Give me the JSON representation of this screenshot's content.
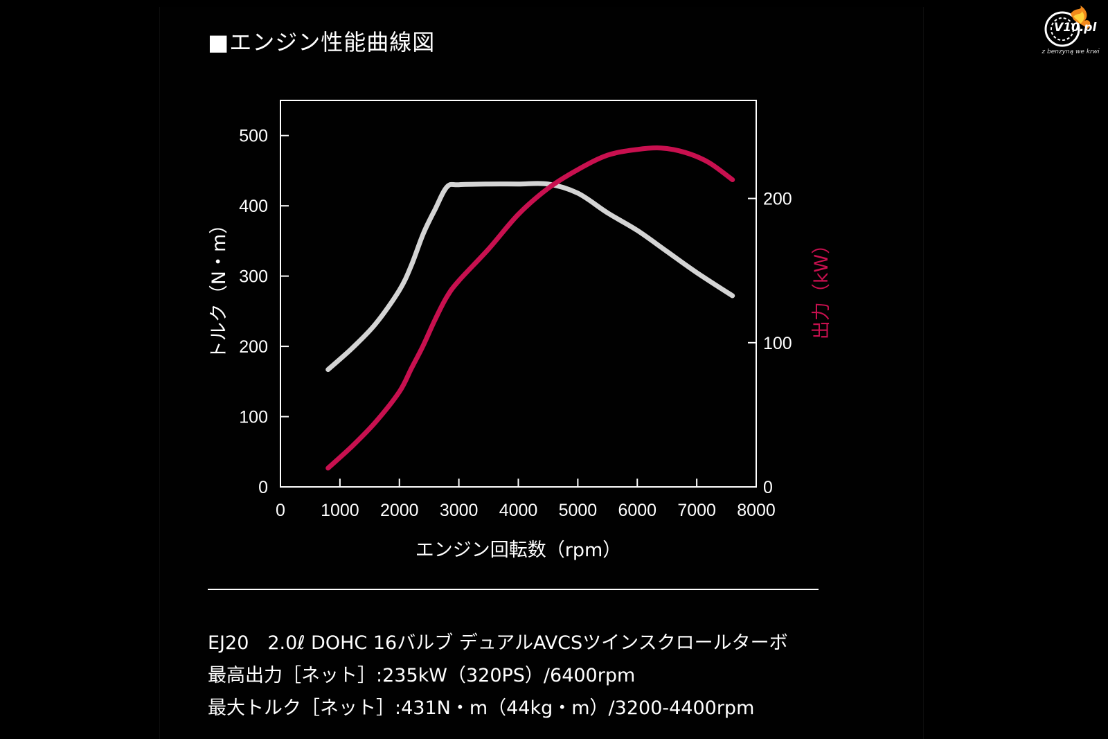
{
  "title": "■エンジン性能曲線図",
  "watermark": {
    "name": "V10.pl",
    "slogan": "z benzyną we krwi"
  },
  "chart_data": {
    "type": "line",
    "xlabel": "エンジン回転数（rpm）",
    "ylabel_left": "トルク（N・m）",
    "ylabel_right": "出力（kW）",
    "xlim": [
      0,
      8000
    ],
    "ylim_left": [
      0,
      550
    ],
    "ylim_right": [
      0,
      268
    ],
    "x_ticks": [
      0,
      1000,
      2000,
      3000,
      4000,
      5000,
      6000,
      7000,
      8000
    ],
    "y_ticks_left": [
      0,
      100,
      200,
      300,
      400,
      500
    ],
    "y_ticks_right": [
      0,
      100,
      200
    ],
    "grid": false,
    "series": [
      {
        "axis": "left",
        "color": "#d4d4d4",
        "x": [
          800,
          1200,
          1600,
          2000,
          2200,
          2400,
          2600,
          2800,
          3000,
          3500,
          4000,
          4500,
          5000,
          5500,
          6000,
          6500,
          7000,
          7600
        ],
        "values": [
          167,
          197,
          232,
          280,
          315,
          360,
          395,
          427,
          430,
          431,
          431,
          431,
          418,
          390,
          365,
          335,
          305,
          272
        ]
      },
      {
        "axis": "right",
        "color": "#c8104f",
        "x": [
          800,
          1200,
          1600,
          2000,
          2200,
          2400,
          2600,
          2800,
          3000,
          3500,
          4000,
          4500,
          5000,
          5500,
          6000,
          6400,
          6800,
          7200,
          7600
        ],
        "values": [
          13,
          28,
          45,
          66,
          82,
          98,
          116,
          132,
          143,
          165,
          189,
          207,
          220,
          230,
          234,
          235,
          232,
          225,
          213
        ]
      }
    ]
  },
  "specs": [
    "EJ20　2.0ℓ DOHC 16バルブ デュアルAVCSツインスクロールターボ",
    "最高出力［ネット］:235kW（320PS）/6400rpm",
    "最大トルク［ネット］:431N・m（44kg・m）/3200-4400rpm"
  ]
}
